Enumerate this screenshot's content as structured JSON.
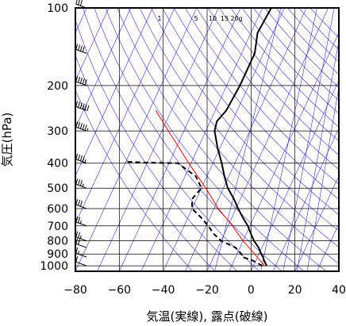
{
  "chart_data": {
    "type": "skew-t",
    "xlabel": "気温(実線), 露点(破線)",
    "ylabel": "気圧(hPa)",
    "xlim": [
      -80,
      40
    ],
    "ylim": [
      1050,
      100
    ],
    "y_scale": "log",
    "x_ticks": [
      "−80",
      "−60",
      "−40",
      "−20",
      "0",
      "20",
      "40"
    ],
    "x_tick_values": [
      -80,
      -60,
      -40,
      -20,
      0,
      20,
      40
    ],
    "y_ticks": [
      "100",
      "200",
      "300",
      "400",
      "500",
      "600",
      "700",
      "800",
      "900",
      "1000"
    ],
    "y_tick_values": [
      100,
      200,
      300,
      400,
      500,
      600,
      700,
      800,
      900,
      1000
    ],
    "mixing_ratio_labels": [
      "1",
      "5",
      "10",
      "15",
      "20g"
    ],
    "mixing_ratio_values": [
      1,
      5,
      10,
      15,
      20
    ],
    "colors": {
      "temperature": "#000000",
      "dewpoint": "#000000",
      "parcel": "#ff0000",
      "guide_lines": "#3333cc",
      "grid": "#000000",
      "wind_barbs": "#000000"
    },
    "temperature": {
      "pressure": [
        1000,
        950,
        925,
        900,
        850,
        800,
        750,
        700,
        650,
        600,
        550,
        500,
        450,
        400,
        350,
        300,
        275,
        250,
        200,
        150,
        125,
        100
      ],
      "values": [
        6,
        3.5,
        2.5,
        1,
        -1.5,
        -5,
        -8,
        -11,
        -15,
        -19,
        -23,
        -28,
        -32,
        -36,
        -41,
        -46,
        -47,
        -45,
        -44,
        -44,
        -47,
        -46
      ]
    },
    "dewpoint": {
      "pressure": [
        1000,
        950,
        925,
        900,
        850,
        800,
        750,
        700,
        650,
        600,
        550,
        500,
        450,
        400,
        398,
        395
      ],
      "values": [
        4,
        -2,
        -7,
        -8,
        -12,
        -20,
        -25,
        -29,
        -34,
        -40,
        -42,
        -40,
        -45,
        -56,
        -70,
        -80
      ]
    },
    "parcel": {
      "pressure": [
        1000,
        900,
        800,
        700,
        600,
        500,
        400,
        300,
        250
      ],
      "values": [
        5,
        -2,
        -10,
        -18,
        -28,
        -38,
        -51,
        -67,
        -77
      ]
    },
    "wind_barbs": [
      {
        "pressure": 1000,
        "speed_kt": 10,
        "direction_deg": 270
      },
      {
        "pressure": 925,
        "speed_kt": 15,
        "direction_deg": 270
      },
      {
        "pressure": 850,
        "speed_kt": 20,
        "direction_deg": 270
      },
      {
        "pressure": 800,
        "speed_kt": 25,
        "direction_deg": 260
      },
      {
        "pressure": 700,
        "speed_kt": 25,
        "direction_deg": 260
      },
      {
        "pressure": 600,
        "speed_kt": 30,
        "direction_deg": 260
      },
      {
        "pressure": 500,
        "speed_kt": 35,
        "direction_deg": 260
      },
      {
        "pressure": 400,
        "speed_kt": 45,
        "direction_deg": 260
      },
      {
        "pressure": 300,
        "speed_kt": 55,
        "direction_deg": 260
      },
      {
        "pressure": 250,
        "speed_kt": 60,
        "direction_deg": 260
      },
      {
        "pressure": 200,
        "speed_kt": 50,
        "direction_deg": 260
      },
      {
        "pressure": 150,
        "speed_kt": 40,
        "direction_deg": 260
      },
      {
        "pressure": 100,
        "speed_kt": 30,
        "direction_deg": 260
      }
    ]
  }
}
